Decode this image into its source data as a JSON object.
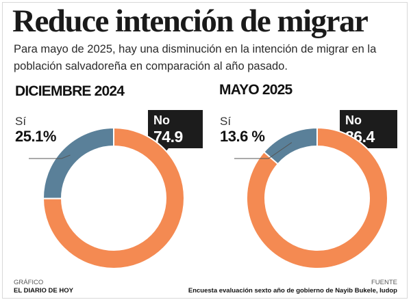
{
  "chart_data": [
    {
      "type": "pie",
      "title": "DICIEMBRE 2024",
      "categories": [
        "Sí",
        "No"
      ],
      "values": [
        25.1,
        74.9
      ],
      "labels": [
        "25.1%",
        "74.9 %"
      ],
      "colors": [
        "#5a8099",
        "#f48a52"
      ]
    },
    {
      "type": "pie",
      "title": "MAYO 2025",
      "categories": [
        "Sí",
        "No"
      ],
      "values": [
        13.6,
        86.4
      ],
      "labels": [
        "13.6 %",
        "86.4 %"
      ],
      "colors": [
        "#5a8099",
        "#f48a52"
      ]
    }
  ],
  "header": {
    "title": "Reduce intención de migrar",
    "subtitle": "Para mayo de 2025, hay una disminución en la intención de migrar en la población salvadoreña en comparación al año pasado."
  },
  "footer": {
    "left_label": "GRÁFICO",
    "left_value": "EL DIARIO DE HOY",
    "right_label": "FUENTE",
    "right_value": "Encuesta evaluación sexto año de gobierno de Nayib Bukele, Iudop"
  },
  "colors": {
    "si": "#5a8099",
    "no": "#f48a52",
    "label_box": "#1c1c1c"
  }
}
